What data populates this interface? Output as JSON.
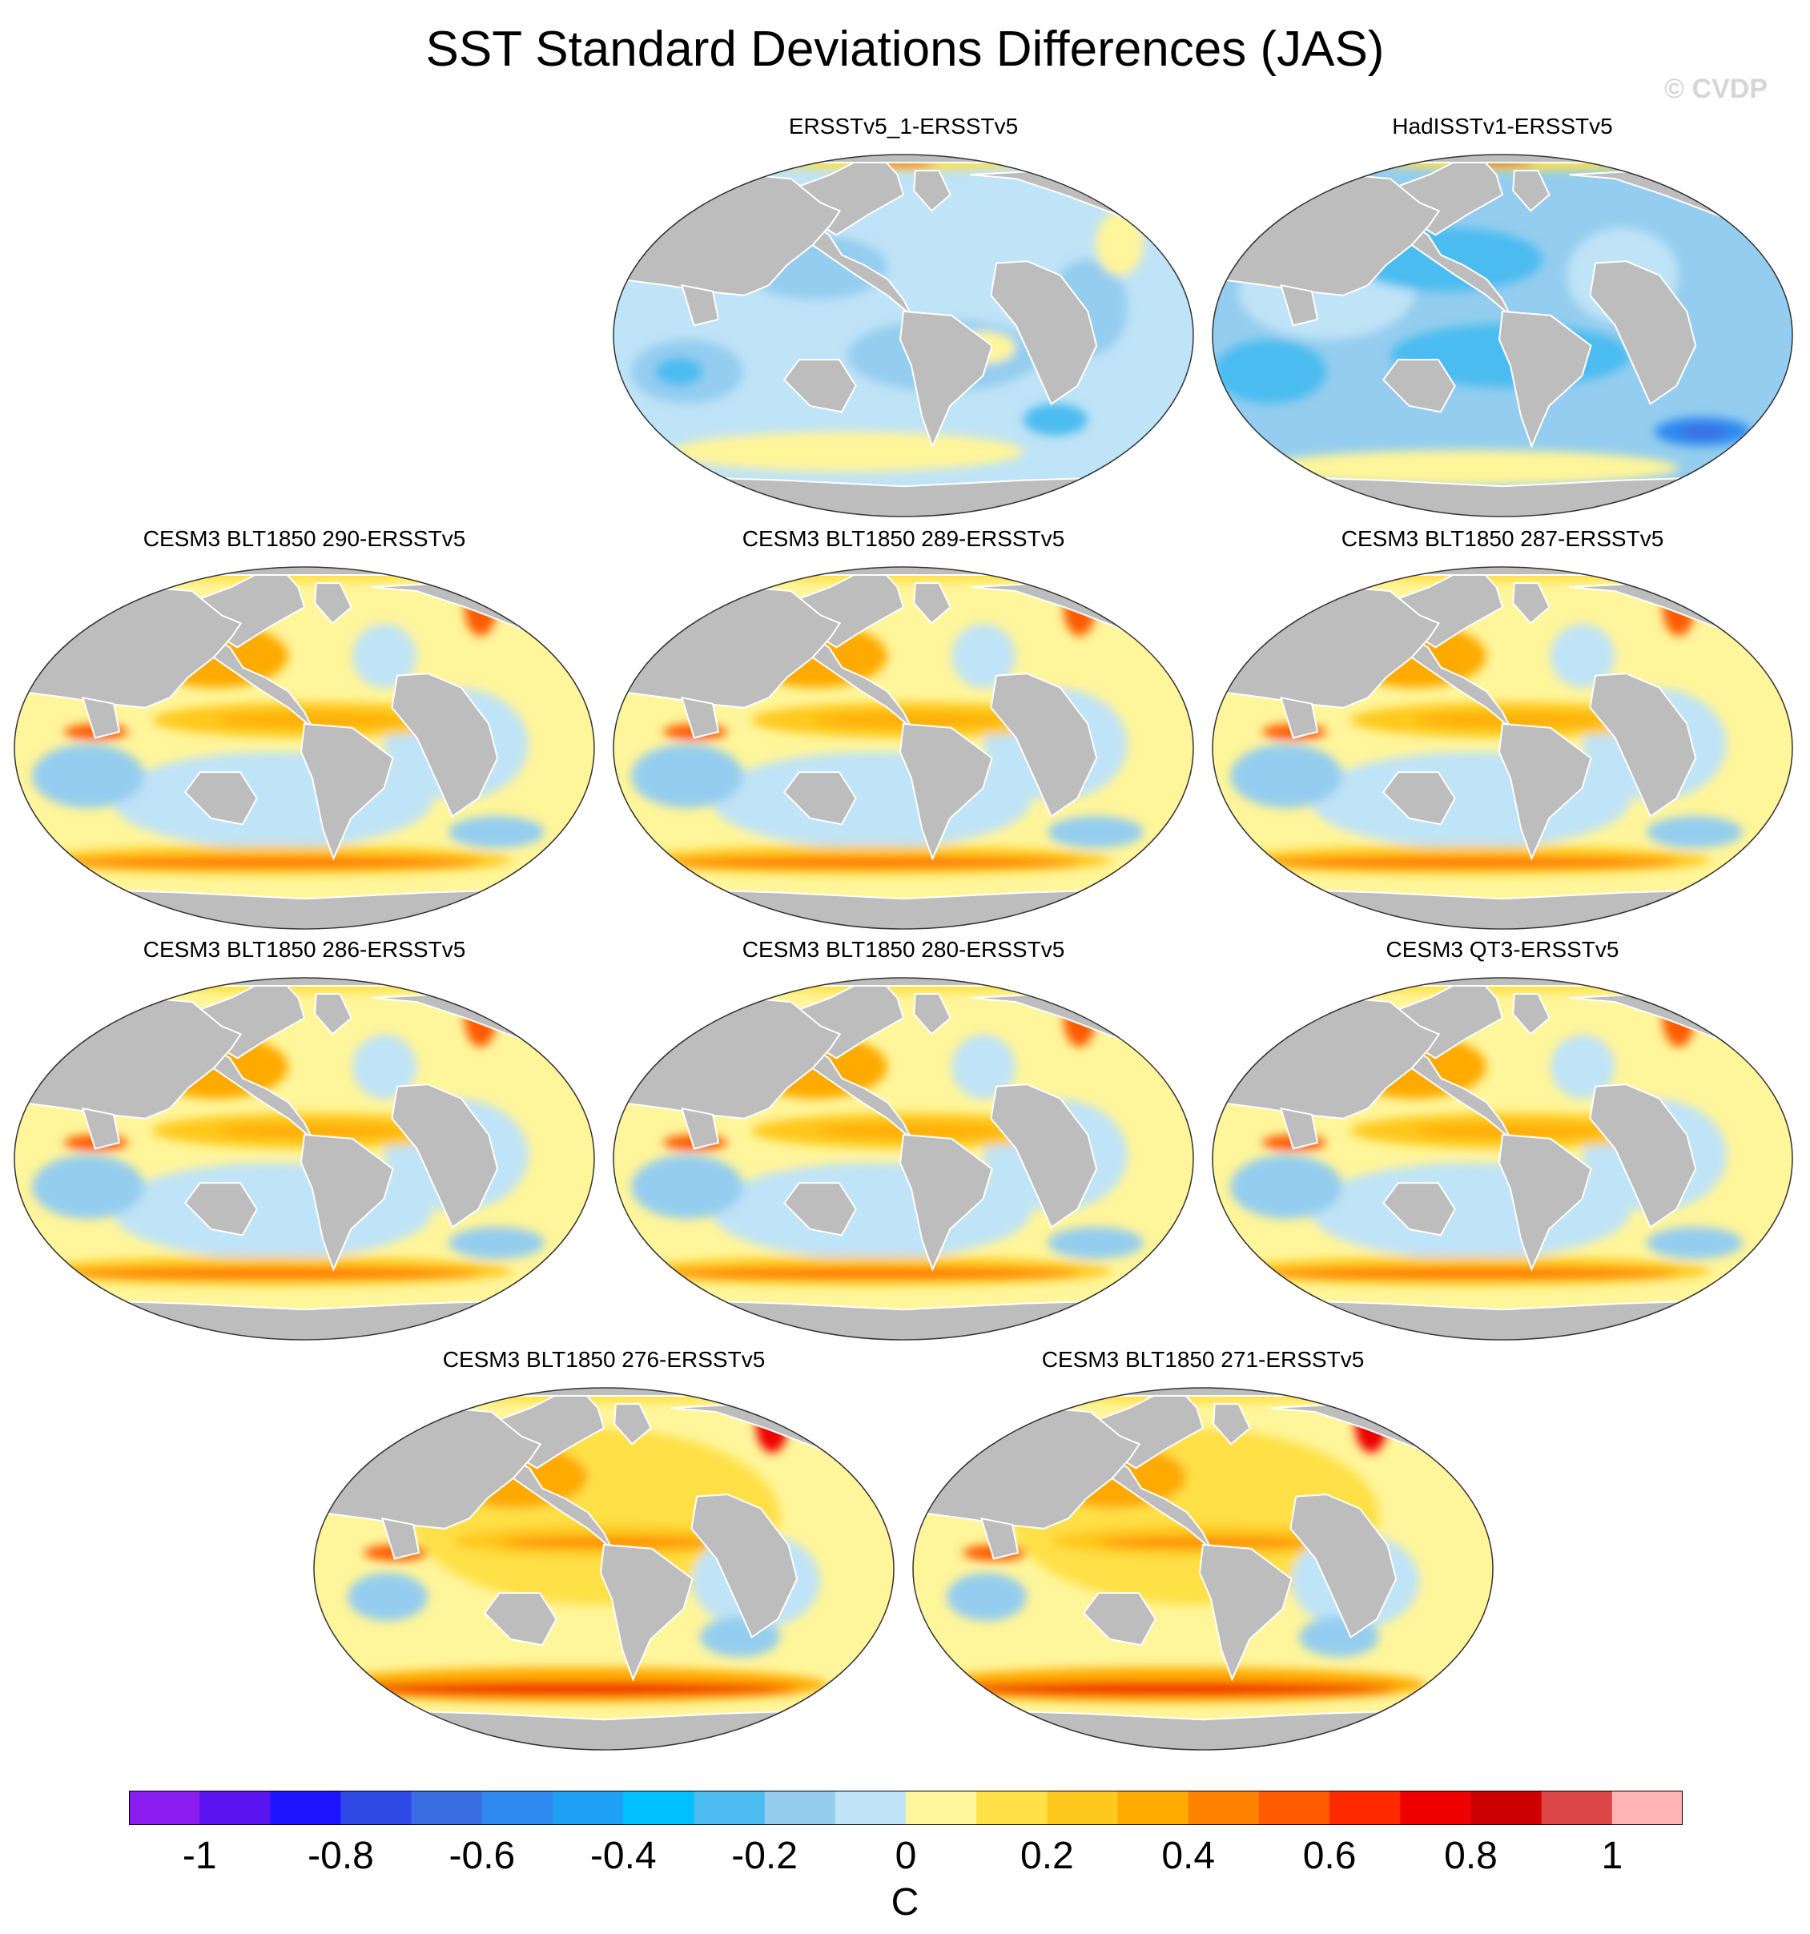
{
  "title": "SST Standard Deviations Differences (JAS)",
  "watermark": "© CVDP",
  "panels": [
    {
      "title": "ERSSTv5_1-ERSSTv5",
      "style": "obs1"
    },
    {
      "title": "HadISSTv1-ERSSTv5",
      "style": "obs2"
    },
    {
      "title": "CESM3 BLT1850 290-ERSSTv5",
      "style": "model"
    },
    {
      "title": "CESM3 BLT1850 289-ERSSTv5",
      "style": "model"
    },
    {
      "title": "CESM3 BLT1850 287-ERSSTv5",
      "style": "model"
    },
    {
      "title": "CESM3 BLT1850 286-ERSSTv5",
      "style": "model"
    },
    {
      "title": "CESM3 BLT1850 280-ERSSTv5",
      "style": "model"
    },
    {
      "title": "CESM3 QT3-ERSSTv5",
      "style": "model"
    },
    {
      "title": "CESM3 BLT1850 276-ERSSTv5",
      "style": "modelwarm"
    },
    {
      "title": "CESM3 BLT1850 271-ERSSTv5",
      "style": "modelwarm"
    }
  ],
  "colorbar": {
    "colors": [
      "#8a1cf0",
      "#5a14f0",
      "#1e14ff",
      "#2e48e6",
      "#3a6ee0",
      "#2e8af0",
      "#1ea0f5",
      "#00c0ff",
      "#4cbcf0",
      "#94cdef",
      "#bfe3f7",
      "#fff59a",
      "#ffe046",
      "#ffc81e",
      "#ffaa00",
      "#ff8200",
      "#ff5a00",
      "#ff2a00",
      "#ee0000",
      "#cc0000",
      "#dc4646",
      "#ffb4b4"
    ],
    "tick_labels": [
      "-1",
      "-0.8",
      "-0.6",
      "-0.4",
      "-0.2",
      "0",
      "0.2",
      "0.4",
      "0.6",
      "0.8",
      "1"
    ],
    "units": "C"
  }
}
